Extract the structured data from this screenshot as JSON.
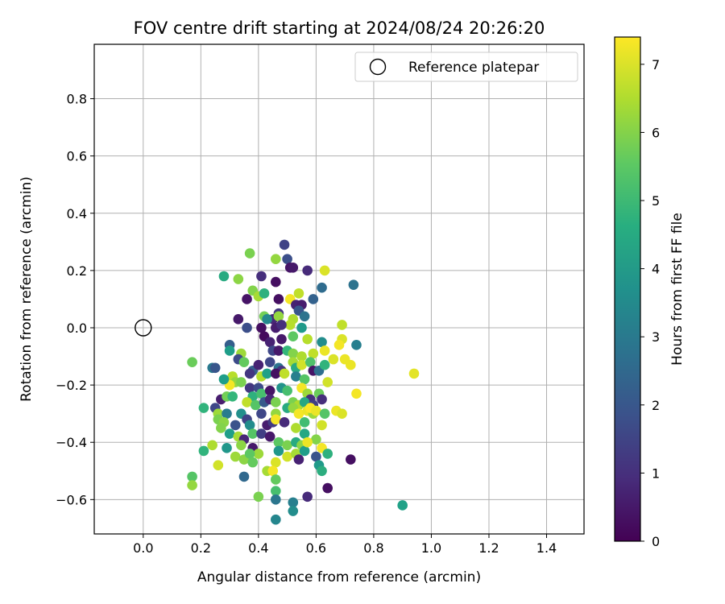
{
  "chart_data": {
    "type": "scatter",
    "title": "FOV centre drift starting at 2024/08/24 20:26:20",
    "xlabel": "Angular distance from reference (arcmin)",
    "ylabel": "Rotation from reference (arcmin)",
    "xlim": [
      -0.17,
      1.53
    ],
    "ylim": [
      -0.72,
      0.99
    ],
    "xticks": [
      "0.0",
      "0.2",
      "0.4",
      "0.6",
      "0.8",
      "1.0",
      "1.2",
      "1.4"
    ],
    "xtick_values": [
      0.0,
      0.2,
      0.4,
      0.6,
      0.8,
      1.0,
      1.2,
      1.4
    ],
    "yticks": [
      "−0.6",
      "−0.4",
      "−0.2",
      "0.0",
      "0.2",
      "0.4",
      "0.6",
      "0.8"
    ],
    "ytick_values": [
      -0.6,
      -0.4,
      -0.2,
      0.0,
      0.2,
      0.4,
      0.6,
      0.8
    ],
    "grid": true,
    "legend": {
      "position": "top-right",
      "entries": [
        "Reference platepar"
      ]
    },
    "reference_point": {
      "name": "Reference platepar",
      "x": 0.0,
      "y": 0.0
    },
    "colorbar": {
      "label": "Hours from first FF file",
      "ticks": [
        "0",
        "1",
        "2",
        "3",
        "4",
        "5",
        "6",
        "7"
      ],
      "tick_values": [
        0,
        1,
        2,
        3,
        4,
        5,
        6,
        7
      ],
      "range": [
        0,
        7.4
      ],
      "colormap": "viridis"
    },
    "points": [
      [
        0.49,
        0.29,
        1.5
      ],
      [
        0.37,
        0.26,
        5.9
      ],
      [
        0.46,
        0.24,
        6.2
      ],
      [
        0.5,
        0.24,
        1.8
      ],
      [
        0.51,
        0.21,
        0.4
      ],
      [
        0.52,
        0.21,
        0.5
      ],
      [
        0.28,
        0.18,
        4.5
      ],
      [
        0.33,
        0.17,
        6.1
      ],
      [
        0.41,
        0.18,
        1.0
      ],
      [
        0.46,
        0.16,
        0.3
      ],
      [
        0.57,
        0.2,
        0.9
      ],
      [
        0.63,
        0.2,
        7.0
      ],
      [
        0.73,
        0.15,
        2.8
      ],
      [
        0.62,
        0.14,
        2.6
      ],
      [
        0.38,
        0.13,
        6.0
      ],
      [
        0.4,
        0.11,
        6.4
      ],
      [
        0.42,
        0.12,
        4.7
      ],
      [
        0.36,
        0.1,
        0.4
      ],
      [
        0.47,
        0.1,
        0.3
      ],
      [
        0.51,
        0.1,
        7.3
      ],
      [
        0.54,
        0.12,
        6.7
      ],
      [
        0.59,
        0.1,
        2.3
      ],
      [
        0.53,
        0.08,
        0.7
      ],
      [
        0.55,
        0.08,
        0.6
      ],
      [
        0.54,
        0.06,
        2.0
      ],
      [
        0.42,
        0.04,
        5.8
      ],
      [
        0.45,
        0.03,
        0.8
      ],
      [
        0.43,
        0.03,
        3.5
      ],
      [
        0.47,
        0.05,
        1.2
      ],
      [
        0.47,
        0.04,
        6.2
      ],
      [
        0.52,
        0.03,
        6.5
      ],
      [
        0.56,
        0.04,
        2.8
      ],
      [
        0.51,
        0.01,
        6.6
      ],
      [
        0.33,
        0.03,
        0.5
      ],
      [
        0.36,
        0.0,
        1.8
      ],
      [
        0.41,
        0.0,
        0.3
      ],
      [
        0.46,
        -0.0,
        0.6
      ],
      [
        0.48,
        0.01,
        1.0
      ],
      [
        0.55,
        0.0,
        4.0
      ],
      [
        0.69,
        0.01,
        6.7
      ],
      [
        0.42,
        -0.03,
        0.2
      ],
      [
        0.44,
        -0.05,
        0.7
      ],
      [
        0.48,
        -0.04,
        0.5
      ],
      [
        0.52,
        -0.03,
        5.5
      ],
      [
        0.57,
        -0.04,
        6.6
      ],
      [
        0.62,
        -0.05,
        3.6
      ],
      [
        0.69,
        -0.04,
        7.0
      ],
      [
        0.68,
        -0.06,
        7.3
      ],
      [
        0.74,
        -0.06,
        3.2
      ],
      [
        0.3,
        -0.06,
        2.2
      ],
      [
        0.3,
        -0.08,
        4.1
      ],
      [
        0.34,
        -0.09,
        6.3
      ],
      [
        0.45,
        -0.08,
        1.6
      ],
      [
        0.47,
        -0.08,
        0.5
      ],
      [
        0.5,
        -0.08,
        4.9
      ],
      [
        0.52,
        -0.09,
        6.0
      ],
      [
        0.55,
        -0.1,
        6.5
      ],
      [
        0.59,
        -0.09,
        6.7
      ],
      [
        0.63,
        -0.08,
        7.2
      ],
      [
        0.66,
        -0.11,
        7.0
      ],
      [
        0.7,
        -0.11,
        7.2
      ],
      [
        0.72,
        -0.13,
        7.2
      ],
      [
        0.17,
        -0.12,
        5.7
      ],
      [
        0.24,
        -0.14,
        3.0
      ],
      [
        0.25,
        -0.14,
        2.0
      ],
      [
        0.33,
        -0.11,
        1.7
      ],
      [
        0.35,
        -0.12,
        5.6
      ],
      [
        0.38,
        -0.15,
        2.2
      ],
      [
        0.4,
        -0.13,
        0.7
      ],
      [
        0.44,
        -0.12,
        1.6
      ],
      [
        0.47,
        -0.14,
        2.8
      ],
      [
        0.48,
        -0.15,
        1.1
      ],
      [
        0.52,
        -0.12,
        6.4
      ],
      [
        0.53,
        -0.14,
        4.5
      ],
      [
        0.55,
        -0.13,
        6.9
      ],
      [
        0.58,
        -0.12,
        5.3
      ],
      [
        0.59,
        -0.15,
        0.4
      ],
      [
        0.61,
        -0.15,
        2.7
      ],
      [
        0.63,
        -0.13,
        4.8
      ],
      [
        0.37,
        -0.16,
        1.2
      ],
      [
        0.41,
        -0.17,
        6.6
      ],
      [
        0.43,
        -0.16,
        4.2
      ],
      [
        0.46,
        -0.16,
        0.3
      ],
      [
        0.49,
        -0.16,
        6.7
      ],
      [
        0.53,
        -0.17,
        3.2
      ],
      [
        0.56,
        -0.18,
        5.4
      ],
      [
        0.31,
        -0.17,
        6.6
      ],
      [
        0.32,
        -0.19,
        6.2
      ],
      [
        0.3,
        -0.2,
        7.3
      ],
      [
        0.34,
        -0.19,
        5.9
      ],
      [
        0.28,
        -0.18,
        4.1
      ],
      [
        0.37,
        -0.21,
        1.2
      ],
      [
        0.4,
        -0.21,
        1.7
      ],
      [
        0.38,
        -0.24,
        4.7
      ],
      [
        0.41,
        -0.23,
        5.2
      ],
      [
        0.44,
        -0.22,
        0.4
      ],
      [
        0.48,
        -0.21,
        3.8
      ],
      [
        0.5,
        -0.22,
        5.2
      ],
      [
        0.55,
        -0.21,
        7.3
      ],
      [
        0.57,
        -0.23,
        6.3
      ],
      [
        0.58,
        -0.25,
        1.0
      ],
      [
        0.61,
        -0.23,
        5.7
      ],
      [
        0.64,
        -0.19,
        6.9
      ],
      [
        0.74,
        -0.23,
        7.3
      ],
      [
        0.94,
        -0.16,
        7.1
      ],
      [
        0.27,
        -0.25,
        0.6
      ],
      [
        0.29,
        -0.24,
        5.8
      ],
      [
        0.31,
        -0.24,
        4.9
      ],
      [
        0.36,
        -0.26,
        6.7
      ],
      [
        0.39,
        -0.27,
        5.4
      ],
      [
        0.42,
        -0.26,
        2.1
      ],
      [
        0.44,
        -0.25,
        0.8
      ],
      [
        0.46,
        -0.26,
        5.9
      ],
      [
        0.52,
        -0.26,
        5.9
      ],
      [
        0.54,
        -0.27,
        6.5
      ],
      [
        0.56,
        -0.26,
        4.4
      ],
      [
        0.59,
        -0.27,
        1.4
      ],
      [
        0.62,
        -0.25,
        1.0
      ],
      [
        0.21,
        -0.28,
        4.8
      ],
      [
        0.25,
        -0.28,
        1.6
      ],
      [
        0.26,
        -0.3,
        6.3
      ],
      [
        0.29,
        -0.3,
        3.1
      ],
      [
        0.34,
        -0.3,
        3.7
      ],
      [
        0.36,
        -0.32,
        1.5
      ],
      [
        0.41,
        -0.3,
        1.6
      ],
      [
        0.46,
        -0.3,
        6.2
      ],
      [
        0.5,
        -0.28,
        4.5
      ],
      [
        0.52,
        -0.28,
        6.2
      ],
      [
        0.54,
        -0.3,
        7.3
      ],
      [
        0.57,
        -0.29,
        7.2
      ],
      [
        0.59,
        -0.3,
        6.3
      ],
      [
        0.58,
        -0.28,
        7.4
      ],
      [
        0.6,
        -0.29,
        7.2
      ],
      [
        0.63,
        -0.3,
        5.4
      ],
      [
        0.67,
        -0.29,
        7.2
      ],
      [
        0.69,
        -0.3,
        7.0
      ],
      [
        0.26,
        -0.32,
        5.9
      ],
      [
        0.28,
        -0.33,
        6.1
      ],
      [
        0.32,
        -0.34,
        1.9
      ],
      [
        0.37,
        -0.34,
        3.6
      ],
      [
        0.43,
        -0.34,
        0.6
      ],
      [
        0.45,
        -0.33,
        1.3
      ],
      [
        0.46,
        -0.32,
        7.3
      ],
      [
        0.49,
        -0.33,
        0.9
      ],
      [
        0.53,
        -0.35,
        6.5
      ],
      [
        0.56,
        -0.33,
        5.1
      ],
      [
        0.62,
        -0.34,
        6.9
      ],
      [
        0.27,
        -0.35,
        6.0
      ],
      [
        0.3,
        -0.37,
        4.1
      ],
      [
        0.33,
        -0.38,
        6.4
      ],
      [
        0.35,
        -0.39,
        0.8
      ],
      [
        0.38,
        -0.37,
        5.4
      ],
      [
        0.41,
        -0.37,
        1.4
      ],
      [
        0.44,
        -0.38,
        0.5
      ],
      [
        0.47,
        -0.4,
        5.5
      ],
      [
        0.5,
        -0.41,
        5.9
      ],
      [
        0.53,
        -0.4,
        4.5
      ],
      [
        0.55,
        -0.41,
        6.1
      ],
      [
        0.56,
        -0.37,
        4.4
      ],
      [
        0.6,
        -0.39,
        6.0
      ],
      [
        0.24,
        -0.41,
        6.5
      ],
      [
        0.29,
        -0.42,
        3.9
      ],
      [
        0.34,
        -0.41,
        6.1
      ],
      [
        0.38,
        -0.42,
        0.5
      ],
      [
        0.4,
        -0.44,
        6.3
      ],
      [
        0.47,
        -0.43,
        3.9
      ],
      [
        0.5,
        -0.45,
        6.9
      ],
      [
        0.53,
        -0.44,
        6.4
      ],
      [
        0.56,
        -0.43,
        4.1
      ],
      [
        0.57,
        -0.4,
        7.2
      ],
      [
        0.6,
        -0.45,
        1.9
      ],
      [
        0.62,
        -0.42,
        7.3
      ],
      [
        0.64,
        -0.44,
        4.7
      ],
      [
        0.21,
        -0.43,
        4.8
      ],
      [
        0.26,
        -0.48,
        6.9
      ],
      [
        0.32,
        -0.45,
        6.3
      ],
      [
        0.35,
        -0.46,
        6.1
      ],
      [
        0.37,
        -0.44,
        5.5
      ],
      [
        0.38,
        -0.47,
        5.6
      ],
      [
        0.46,
        -0.47,
        7.0
      ],
      [
        0.54,
        -0.46,
        0.7
      ],
      [
        0.61,
        -0.48,
        4.0
      ],
      [
        0.62,
        -0.5,
        4.6
      ],
      [
        0.72,
        -0.46,
        0.3
      ],
      [
        0.17,
        -0.52,
        5.4
      ],
      [
        0.17,
        -0.55,
        6.2
      ],
      [
        0.35,
        -0.52,
        2.5
      ],
      [
        0.43,
        -0.5,
        6.4
      ],
      [
        0.45,
        -0.5,
        7.3
      ],
      [
        0.46,
        -0.53,
        5.6
      ],
      [
        0.57,
        -0.59,
        0.9
      ],
      [
        0.64,
        -0.56,
        0.3
      ],
      [
        0.4,
        -0.59,
        5.9
      ],
      [
        0.46,
        -0.57,
        5.2
      ],
      [
        0.46,
        -0.6,
        2.9
      ],
      [
        0.52,
        -0.61,
        3.2
      ],
      [
        0.52,
        -0.64,
        3.6
      ],
      [
        0.46,
        -0.67,
        3.4
      ],
      [
        0.9,
        -0.62,
        4.2
      ]
    ]
  }
}
